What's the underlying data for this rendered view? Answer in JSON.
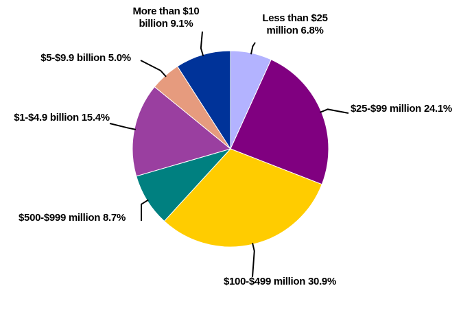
{
  "chart_data": {
    "type": "pie",
    "categories": [
      "Less than $25 million",
      "$25-$99 million",
      "$100-$499 million",
      "$500-$999 million",
      "$1-$4.9 billion",
      "$5-$9.9 billion",
      "More than $10 billion"
    ],
    "values": [
      6.8,
      24.1,
      30.9,
      8.7,
      15.4,
      5.0,
      9.1
    ],
    "value_labels": [
      "6.8%",
      "24.1%",
      "30.9%",
      "8.7%",
      "15.4%",
      "5.0%",
      "9.1%"
    ],
    "colors": [
      "#b3b3ff",
      "#800080",
      "#ffcc00",
      "#008080",
      "#9a3fa0",
      "#e69b7e",
      "#003399"
    ]
  }
}
